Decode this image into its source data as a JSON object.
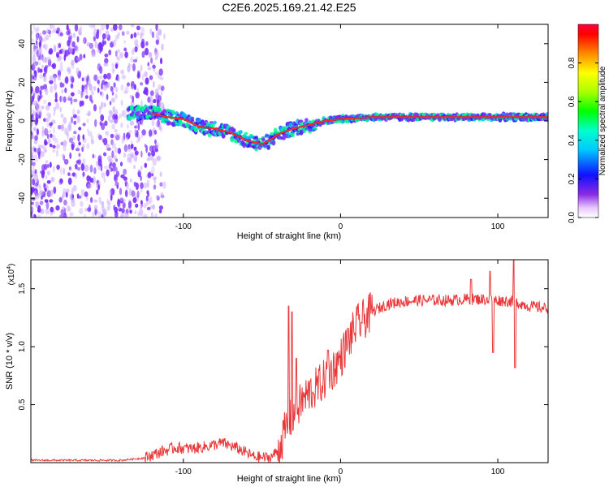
{
  "title": "C2E6.2025.169.21.42.E25",
  "colors": {
    "snr_line": "#e8383a",
    "ridge": "#ff2a2a",
    "speckle": "#7a2cff",
    "speckle_light": "#c9a8ff"
  },
  "chart_data": [
    {
      "type": "heatmap",
      "xlabel": "Height of straight line (km)",
      "ylabel": "Frequency (Hz)",
      "xlim": [
        -197,
        132
      ],
      "ylim": [
        -50,
        50
      ],
      "xticks": [
        -100,
        0,
        100
      ],
      "yticks": [
        -40,
        -20,
        0,
        20,
        40
      ],
      "colorbar": {
        "label": "Normalized spectral amplitude",
        "range": [
          0,
          1
        ],
        "ticks": [
          "0.0",
          "0.2",
          "0.4",
          "0.6",
          "0.8"
        ]
      },
      "ridge": {
        "x": [
          -135,
          -120,
          -110,
          -100,
          -90,
          -80,
          -70,
          -60,
          -50,
          -45,
          -40,
          -30,
          -20,
          -10,
          0,
          10,
          20,
          40,
          60,
          80,
          100,
          132
        ],
        "y": [
          4,
          4,
          2,
          1,
          -3,
          -4,
          -6,
          -10,
          -12,
          -10,
          -7,
          -4,
          -2,
          0,
          1,
          1.5,
          2,
          2,
          2,
          2,
          2,
          2
        ]
      },
      "noise_region": {
        "x": [
          -197,
          -120
        ],
        "y": [
          -50,
          50
        ]
      }
    },
    {
      "type": "line",
      "xlabel": "Height of straight line (km)",
      "ylabel": "SNR (10 * v/v)",
      "yscale_label": "(x10",
      "yscale_exp": "4",
      "xlim": [
        -197,
        132
      ],
      "ylim": [
        0,
        1.75
      ],
      "xticks": [
        -100,
        0,
        100
      ],
      "yticks": [
        "0.5",
        "1.0",
        "1.5"
      ],
      "envelope": {
        "x": [
          -197,
          -140,
          -125,
          -115,
          -105,
          -95,
          -85,
          -75,
          -65,
          -55,
          -45,
          -40,
          -35,
          -30,
          -25,
          -20,
          -15,
          -10,
          -5,
          0,
          5,
          10,
          20,
          30,
          40,
          50,
          60,
          70,
          80,
          90,
          100,
          110,
          120,
          132
        ],
        "y": [
          0.02,
          0.02,
          0.04,
          0.09,
          0.13,
          0.12,
          0.14,
          0.17,
          0.12,
          0.05,
          0.04,
          0.1,
          0.28,
          0.42,
          0.52,
          0.6,
          0.65,
          0.72,
          0.8,
          0.9,
          1.05,
          1.18,
          1.3,
          1.37,
          1.39,
          1.4,
          1.4,
          1.4,
          1.41,
          1.41,
          1.4,
          1.39,
          1.35,
          1.33
        ]
      },
      "spikes": [
        {
          "x": -33,
          "y": 1.35
        },
        {
          "x": -31,
          "y": 1.3
        },
        {
          "x": -28,
          "y": 0.9
        },
        {
          "x": -8,
          "y": 0.97
        },
        {
          "x": 83,
          "y": 1.58
        },
        {
          "x": 95,
          "y": 1.65
        },
        {
          "x": 97,
          "y": 0.95
        },
        {
          "x": 110,
          "y": 1.75
        },
        {
          "x": 111,
          "y": 0.82
        }
      ]
    }
  ]
}
